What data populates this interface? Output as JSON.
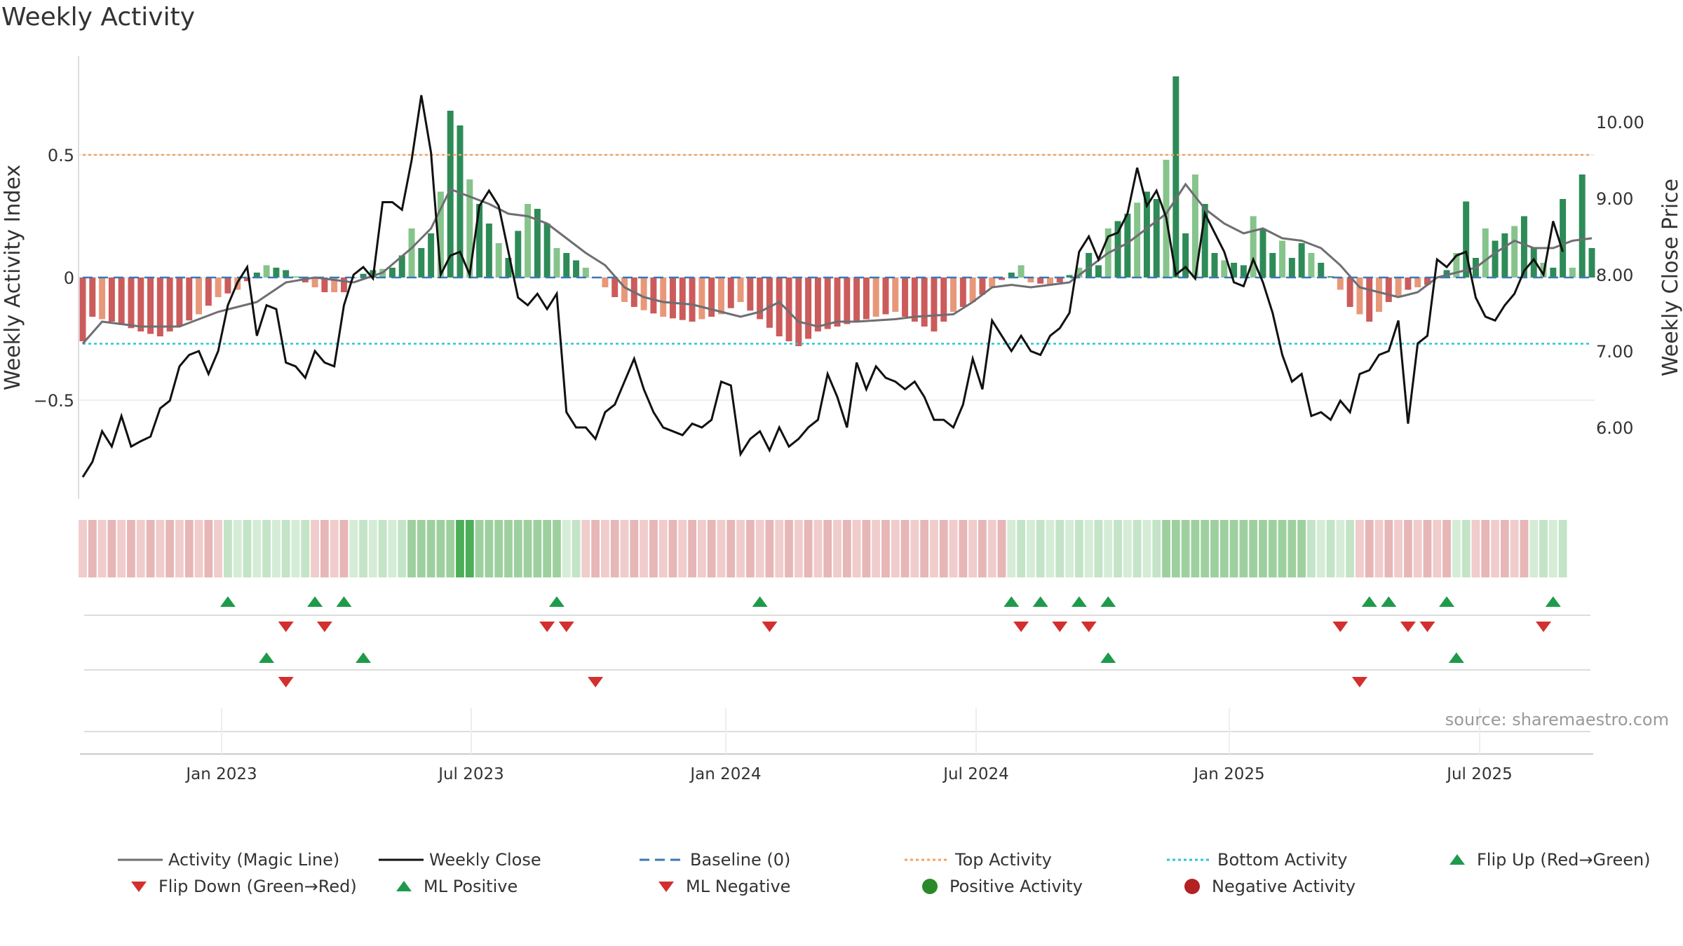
{
  "title": "Weekly Activity",
  "source": "source: sharemaestro.com",
  "chart_data": {
    "type": "bar",
    "title": "Weekly Activity",
    "ylabel_left": "Weekly Activity Index",
    "ylabel_right": "Weekly Close Price",
    "yticks_left": [
      "0.5",
      "0",
      "−0.5"
    ],
    "yticks_right": [
      "10.00",
      "9.00",
      "8.00",
      "7.00",
      "6.00"
    ],
    "x_tick_labels": [
      "Jan 2023",
      "Jul 2023",
      "Jan 2024",
      "Jul 2024",
      "Jan 2025",
      "Jul 2025"
    ],
    "top_activity": 0.5,
    "bottom_activity": -0.27,
    "activity_keypoints": [
      [
        0,
        -0.26
      ],
      [
        1,
        -0.16
      ],
      [
        3,
        -0.18
      ],
      [
        6,
        -0.22
      ],
      [
        8,
        -0.24
      ],
      [
        10,
        -0.2
      ],
      [
        12,
        -0.15
      ],
      [
        14,
        -0.08
      ],
      [
        16,
        -0.05
      ],
      [
        18,
        0.02
      ],
      [
        19,
        0.05
      ],
      [
        21,
        0.03
      ],
      [
        23,
        -0.02
      ],
      [
        25,
        -0.06
      ],
      [
        27,
        -0.06
      ],
      [
        28,
        0.0
      ],
      [
        30,
        0.03
      ],
      [
        32,
        0.04
      ],
      [
        33,
        0.09
      ],
      [
        34,
        0.2
      ],
      [
        35,
        0.12
      ],
      [
        36,
        0.18
      ],
      [
        37,
        0.35
      ],
      [
        38,
        0.68
      ],
      [
        39,
        0.62
      ],
      [
        40,
        0.4
      ],
      [
        41,
        0.3
      ],
      [
        42,
        0.22
      ],
      [
        43,
        0.14
      ],
      [
        44,
        0.08
      ],
      [
        46,
        0.3
      ],
      [
        47,
        0.28
      ],
      [
        48,
        0.22
      ],
      [
        49,
        0.12
      ],
      [
        50,
        0.1
      ],
      [
        52,
        0.04
      ],
      [
        55,
        -0.08
      ],
      [
        57,
        -0.12
      ],
      [
        60,
        -0.16
      ],
      [
        63,
        -0.18
      ],
      [
        66,
        -0.15
      ],
      [
        68,
        -0.1
      ],
      [
        70,
        -0.17
      ],
      [
        72,
        -0.24
      ],
      [
        74,
        -0.28
      ],
      [
        76,
        -0.22
      ],
      [
        78,
        -0.2
      ],
      [
        80,
        -0.18
      ],
      [
        82,
        -0.16
      ],
      [
        84,
        -0.14
      ],
      [
        86,
        -0.18
      ],
      [
        88,
        -0.22
      ],
      [
        90,
        -0.14
      ],
      [
        92,
        -0.1
      ],
      [
        94,
        -0.04
      ],
      [
        96,
        0.02
      ],
      [
        97,
        0.05
      ],
      [
        98,
        -0.02
      ],
      [
        100,
        -0.03
      ],
      [
        101,
        -0.02
      ],
      [
        103,
        0.04
      ],
      [
        104,
        0.1
      ],
      [
        105,
        0.05
      ],
      [
        106,
        0.2
      ],
      [
        108,
        0.26
      ],
      [
        110,
        0.35
      ],
      [
        111,
        0.32
      ],
      [
        112,
        0.48
      ],
      [
        113,
        0.82
      ],
      [
        114,
        0.18
      ],
      [
        115,
        0.42
      ],
      [
        116,
        0.3
      ],
      [
        117,
        0.1
      ],
      [
        118,
        0.07
      ],
      [
        120,
        0.05
      ],
      [
        121,
        0.25
      ],
      [
        122,
        0.2
      ],
      [
        123,
        0.1
      ],
      [
        124,
        0.15
      ],
      [
        125,
        0.08
      ],
      [
        126,
        0.14
      ],
      [
        128,
        0.06
      ],
      [
        130,
        -0.05
      ],
      [
        131,
        -0.12
      ],
      [
        133,
        -0.18
      ],
      [
        135,
        -0.1
      ],
      [
        137,
        -0.05
      ],
      [
        139,
        -0.03
      ],
      [
        141,
        0.03
      ],
      [
        142,
        0.1
      ],
      [
        143,
        0.31
      ],
      [
        144,
        0.08
      ],
      [
        145,
        0.2
      ],
      [
        146,
        0.15
      ],
      [
        147,
        0.18
      ],
      [
        148,
        0.21
      ],
      [
        149,
        0.25
      ],
      [
        150,
        0.12
      ],
      [
        151,
        0.06
      ],
      [
        152,
        0.04
      ],
      [
        153,
        0.32
      ],
      [
        154,
        0.04
      ],
      [
        155,
        0.42
      ],
      [
        156,
        0.12
      ]
    ],
    "magic_line_keypoints": [
      [
        0,
        -0.27
      ],
      [
        2,
        -0.18
      ],
      [
        6,
        -0.2
      ],
      [
        10,
        -0.2
      ],
      [
        14,
        -0.14
      ],
      [
        18,
        -0.1
      ],
      [
        21,
        -0.02
      ],
      [
        24,
        0.0
      ],
      [
        28,
        -0.02
      ],
      [
        31,
        0.02
      ],
      [
        34,
        0.12
      ],
      [
        36,
        0.2
      ],
      [
        38,
        0.36
      ],
      [
        40,
        0.33
      ],
      [
        42,
        0.3
      ],
      [
        44,
        0.26
      ],
      [
        46,
        0.25
      ],
      [
        48,
        0.22
      ],
      [
        50,
        0.16
      ],
      [
        52,
        0.1
      ],
      [
        54,
        0.05
      ],
      [
        56,
        -0.04
      ],
      [
        58,
        -0.08
      ],
      [
        60,
        -0.1
      ],
      [
        63,
        -0.11
      ],
      [
        66,
        -0.14
      ],
      [
        68,
        -0.16
      ],
      [
        70,
        -0.14
      ],
      [
        72,
        -0.1
      ],
      [
        74,
        -0.18
      ],
      [
        76,
        -0.2
      ],
      [
        78,
        -0.18
      ],
      [
        80,
        -0.18
      ],
      [
        84,
        -0.17
      ],
      [
        86,
        -0.16
      ],
      [
        90,
        -0.15
      ],
      [
        92,
        -0.1
      ],
      [
        94,
        -0.04
      ],
      [
        96,
        -0.03
      ],
      [
        98,
        -0.04
      ],
      [
        100,
        -0.03
      ],
      [
        102,
        -0.02
      ],
      [
        104,
        0.04
      ],
      [
        106,
        0.1
      ],
      [
        108,
        0.14
      ],
      [
        111,
        0.23
      ],
      [
        112,
        0.26
      ],
      [
        114,
        0.38
      ],
      [
        116,
        0.28
      ],
      [
        118,
        0.22
      ],
      [
        120,
        0.18
      ],
      [
        122,
        0.2
      ],
      [
        124,
        0.16
      ],
      [
        126,
        0.15
      ],
      [
        128,
        0.12
      ],
      [
        130,
        0.05
      ],
      [
        132,
        -0.04
      ],
      [
        134,
        -0.06
      ],
      [
        136,
        -0.08
      ],
      [
        138,
        -0.06
      ],
      [
        140,
        0.0
      ],
      [
        142,
        0.02
      ],
      [
        144,
        0.04
      ],
      [
        146,
        0.1
      ],
      [
        148,
        0.15
      ],
      [
        150,
        0.12
      ],
      [
        152,
        0.12
      ],
      [
        154,
        0.15
      ],
      [
        156,
        0.16
      ]
    ],
    "close_keypoints": [
      [
        0,
        5.35
      ],
      [
        1,
        5.55
      ],
      [
        2,
        5.95
      ],
      [
        3,
        5.75
      ],
      [
        4,
        6.15
      ],
      [
        5,
        5.75
      ],
      [
        6,
        5.82
      ],
      [
        7,
        5.88
      ],
      [
        8,
        6.25
      ],
      [
        9,
        6.35
      ],
      [
        10,
        6.8
      ],
      [
        11,
        6.95
      ],
      [
        12,
        7.0
      ],
      [
        13,
        6.7
      ],
      [
        14,
        7.0
      ],
      [
        15,
        7.6
      ],
      [
        16,
        7.9
      ],
      [
        17,
        8.1
      ],
      [
        18,
        7.2
      ],
      [
        19,
        7.6
      ],
      [
        20,
        7.55
      ],
      [
        21,
        6.85
      ],
      [
        22,
        6.8
      ],
      [
        23,
        6.65
      ],
      [
        24,
        7.0
      ],
      [
        25,
        6.85
      ],
      [
        26,
        6.8
      ],
      [
        27,
        7.6
      ],
      [
        28,
        8.0
      ],
      [
        29,
        8.1
      ],
      [
        30,
        7.95
      ],
      [
        31,
        8.95
      ],
      [
        32,
        8.95
      ],
      [
        33,
        8.85
      ],
      [
        34,
        9.5
      ],
      [
        35,
        10.35
      ],
      [
        36,
        9.6
      ],
      [
        37,
        8.0
      ],
      [
        38,
        8.25
      ],
      [
        39,
        8.3
      ],
      [
        40,
        8.0
      ],
      [
        41,
        8.9
      ],
      [
        42,
        9.1
      ],
      [
        43,
        8.9
      ],
      [
        44,
        8.3
      ],
      [
        45,
        7.7
      ],
      [
        46,
        7.6
      ],
      [
        47,
        7.75
      ],
      [
        48,
        7.55
      ],
      [
        49,
        7.75
      ],
      [
        50,
        6.2
      ],
      [
        51,
        6.0
      ],
      [
        52,
        6.0
      ],
      [
        53,
        5.85
      ],
      [
        54,
        6.2
      ],
      [
        55,
        6.3
      ],
      [
        56,
        6.6
      ],
      [
        57,
        6.9
      ],
      [
        58,
        6.5
      ],
      [
        59,
        6.2
      ],
      [
        60,
        6.0
      ],
      [
        61,
        5.95
      ],
      [
        62,
        5.9
      ],
      [
        63,
        6.05
      ],
      [
        64,
        6.0
      ],
      [
        65,
        6.1
      ],
      [
        66,
        6.6
      ],
      [
        67,
        6.55
      ],
      [
        68,
        5.65
      ],
      [
        69,
        5.85
      ],
      [
        70,
        5.95
      ],
      [
        71,
        5.7
      ],
      [
        72,
        6.0
      ],
      [
        73,
        5.75
      ],
      [
        74,
        5.85
      ],
      [
        75,
        6.0
      ],
      [
        76,
        6.1
      ],
      [
        77,
        6.7
      ],
      [
        78,
        6.4
      ],
      [
        79,
        6.0
      ],
      [
        80,
        6.85
      ],
      [
        81,
        6.5
      ],
      [
        82,
        6.8
      ],
      [
        83,
        6.65
      ],
      [
        84,
        6.6
      ],
      [
        85,
        6.5
      ],
      [
        86,
        6.6
      ],
      [
        87,
        6.4
      ],
      [
        88,
        6.1
      ],
      [
        89,
        6.1
      ],
      [
        90,
        6.0
      ],
      [
        91,
        6.3
      ],
      [
        92,
        6.9
      ],
      [
        93,
        6.5
      ],
      [
        94,
        7.4
      ],
      [
        95,
        7.2
      ],
      [
        96,
        7.0
      ],
      [
        97,
        7.2
      ],
      [
        98,
        7.0
      ],
      [
        99,
        6.95
      ],
      [
        100,
        7.2
      ],
      [
        101,
        7.3
      ],
      [
        102,
        7.5
      ],
      [
        103,
        8.3
      ],
      [
        104,
        8.5
      ],
      [
        105,
        8.2
      ],
      [
        106,
        8.5
      ],
      [
        107,
        8.55
      ],
      [
        108,
        8.8
      ],
      [
        109,
        9.4
      ],
      [
        110,
        8.9
      ],
      [
        111,
        9.1
      ],
      [
        112,
        8.75
      ],
      [
        113,
        8.0
      ],
      [
        114,
        8.1
      ],
      [
        115,
        7.95
      ],
      [
        116,
        8.8
      ],
      [
        117,
        8.55
      ],
      [
        118,
        8.3
      ],
      [
        119,
        7.9
      ],
      [
        120,
        7.85
      ],
      [
        121,
        8.2
      ],
      [
        122,
        7.9
      ],
      [
        123,
        7.5
      ],
      [
        124,
        6.95
      ],
      [
        125,
        6.6
      ],
      [
        126,
        6.7
      ],
      [
        127,
        6.15
      ],
      [
        128,
        6.2
      ],
      [
        129,
        6.1
      ],
      [
        130,
        6.35
      ],
      [
        131,
        6.2
      ],
      [
        132,
        6.7
      ],
      [
        133,
        6.75
      ],
      [
        134,
        6.95
      ],
      [
        135,
        7.0
      ],
      [
        136,
        7.4
      ],
      [
        137,
        6.05
      ],
      [
        138,
        7.1
      ],
      [
        139,
        7.2
      ],
      [
        140,
        8.2
      ],
      [
        141,
        8.1
      ],
      [
        142,
        8.25
      ],
      [
        143,
        8.3
      ],
      [
        144,
        7.7
      ],
      [
        145,
        7.45
      ],
      [
        146,
        7.4
      ],
      [
        147,
        7.6
      ],
      [
        148,
        7.75
      ],
      [
        149,
        8.05
      ],
      [
        150,
        8.2
      ],
      [
        151,
        8.0
      ],
      [
        152,
        8.7
      ],
      [
        153,
        8.3
      ]
    ],
    "bands": [
      1,
      1,
      1,
      1,
      1,
      1,
      1,
      1,
      1,
      1,
      1,
      1,
      1,
      1,
      1,
      2,
      2,
      2,
      2,
      2,
      2,
      2,
      2,
      2,
      1,
      1,
      1,
      1,
      2,
      2,
      2,
      2,
      2,
      2,
      3,
      3,
      3,
      3,
      3,
      4,
      4,
      3,
      3,
      3,
      3,
      3,
      3,
      3,
      3,
      3,
      2,
      2,
      1,
      1,
      1,
      1,
      1,
      1,
      1,
      1,
      1,
      1,
      1,
      1,
      1,
      1,
      1,
      1,
      1,
      1,
      1,
      1,
      1,
      1,
      1,
      1,
      1,
      1,
      1,
      1,
      1,
      1,
      1,
      1,
      1,
      1,
      1,
      1,
      1,
      1,
      1,
      1,
      1,
      1,
      1,
      1,
      2,
      2,
      2,
      2,
      2,
      2,
      2,
      2,
      2,
      2,
      2,
      2,
      2,
      2,
      2,
      2,
      3,
      3,
      3,
      3,
      3,
      3,
      3,
      3,
      3,
      3,
      3,
      3,
      3,
      3,
      3,
      2,
      2,
      2,
      2,
      2,
      1,
      1,
      1,
      1,
      1,
      1,
      1,
      1,
      1,
      1,
      2,
      2,
      1,
      1,
      1,
      1,
      1,
      1,
      2,
      2,
      2,
      2
    ],
    "flip_up_row1": [
      15,
      24,
      27,
      49,
      70,
      96,
      99,
      103,
      106
    ],
    "flip_down_row1": [
      21,
      25,
      48,
      50,
      71,
      97,
      101,
      104,
      130,
      137,
      139
    ],
    "flip_up_row1b": [
      133,
      135,
      141,
      152
    ],
    "flip_down_row1b": [
      151
    ],
    "flip_up_row2": [
      19,
      29,
      106,
      142
    ],
    "flip_down_row2": [
      21,
      53,
      132
    ],
    "legend": [
      {
        "label": "Activity (Magic Line)",
        "kind": "line",
        "color": "#6e6e73"
      },
      {
        "label": "Weekly Close",
        "kind": "line",
        "color": "#111111"
      },
      {
        "label": "Baseline (0)",
        "kind": "dash",
        "color": "#3a78b5"
      },
      {
        "label": "Top Activity",
        "kind": "dot",
        "color": "#f4a15d"
      },
      {
        "label": "Bottom Activity",
        "kind": "dot",
        "color": "#2bc6d6"
      },
      {
        "label": "Flip Up (Red→Green)",
        "kind": "up",
        "color": "#1e9a4a"
      },
      {
        "label": "Flip Down (Green→Red)",
        "kind": "down",
        "color": "#d32f2f"
      },
      {
        "label": "ML Positive",
        "kind": "up",
        "color": "#1e9a4a"
      },
      {
        "label": "ML Negative",
        "kind": "down",
        "color": "#d32f2f"
      },
      {
        "label": "Positive Activity",
        "kind": "circle",
        "color": "#2a8a2a"
      },
      {
        "label": "Negative Activity",
        "kind": "circle",
        "color": "#b22222"
      }
    ]
  }
}
